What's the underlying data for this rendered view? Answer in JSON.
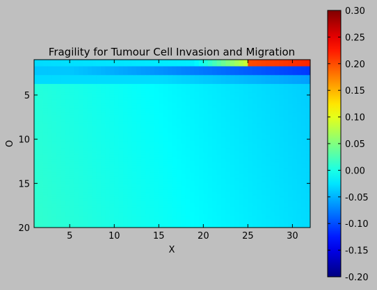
{
  "chart_data": {
    "type": "heatmap",
    "title": "Fragility for Tumour Cell Invasion and Migration",
    "xlabel": "X",
    "ylabel": "O",
    "xlim": [
      1,
      32
    ],
    "ylim": [
      20,
      1
    ],
    "y_axis_inverted": true,
    "x_ticks": [
      5,
      10,
      15,
      20,
      25,
      30
    ],
    "y_ticks": [
      5,
      10,
      15,
      20
    ],
    "colormap": "jet",
    "colorbar": {
      "vmin": -0.2,
      "vmax": 0.3,
      "ticks": [
        "-0.20",
        "-0.15",
        "-0.10",
        "-0.05",
        "0.00",
        "0.05",
        "0.10",
        "0.15",
        "0.20",
        "0.25",
        "0.30"
      ]
    },
    "grid": false,
    "value_description": [
      {
        "region": "row O=1, X 25-32",
        "value": 0.2
      },
      {
        "region": "row O=1, X 20-25",
        "value": 0.08
      },
      {
        "region": "row O=2, X 5-32",
        "value": -0.1
      },
      {
        "region": "rows O=3-20, X low",
        "value": 0.01
      },
      {
        "region": "rows O=3-20, X high",
        "value": -0.03
      }
    ]
  }
}
